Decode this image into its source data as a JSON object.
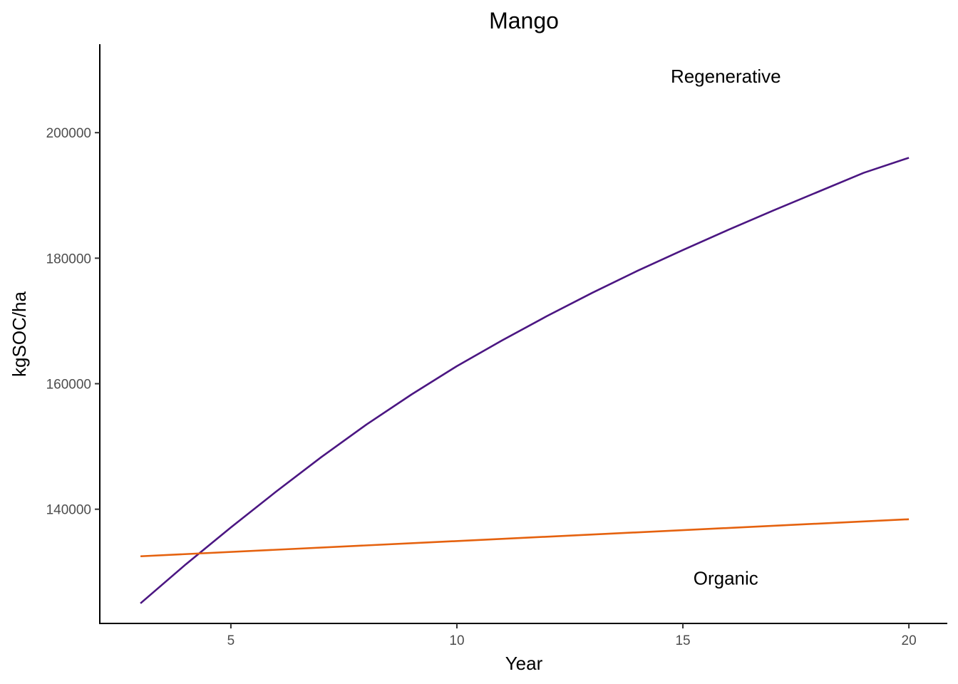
{
  "chart_data": {
    "type": "line",
    "title": "Mango",
    "xlabel": "Year",
    "ylabel": "kgSOC/ha",
    "xlim": [
      2.1,
      20.85
    ],
    "ylim": [
      121800,
      214100
    ],
    "x_ticks": [
      5,
      10,
      15,
      20
    ],
    "y_ticks": [
      140000,
      160000,
      180000,
      200000
    ],
    "grid": false,
    "legend": "none",
    "series": [
      {
        "name": "Regenerative",
        "color": "#4b1682",
        "x": [
          3,
          4,
          5,
          6,
          7,
          8,
          9,
          10,
          11,
          12,
          13,
          14,
          15,
          16,
          17,
          18,
          19,
          20
        ],
        "y": [
          125000,
          131200,
          137100,
          142800,
          148300,
          153500,
          158300,
          162800,
          166900,
          170800,
          174500,
          178000,
          181300,
          184500,
          187600,
          190600,
          193600,
          196000
        ]
      },
      {
        "name": "Organic",
        "color": "#e5620f",
        "x": [
          3,
          20
        ],
        "y": [
          132500,
          138400
        ]
      }
    ],
    "annotations": [
      {
        "text": "Regenerative",
        "x": 15.95,
        "y": 209000
      },
      {
        "text": "Organic",
        "x": 15.95,
        "y": 129000
      }
    ]
  }
}
